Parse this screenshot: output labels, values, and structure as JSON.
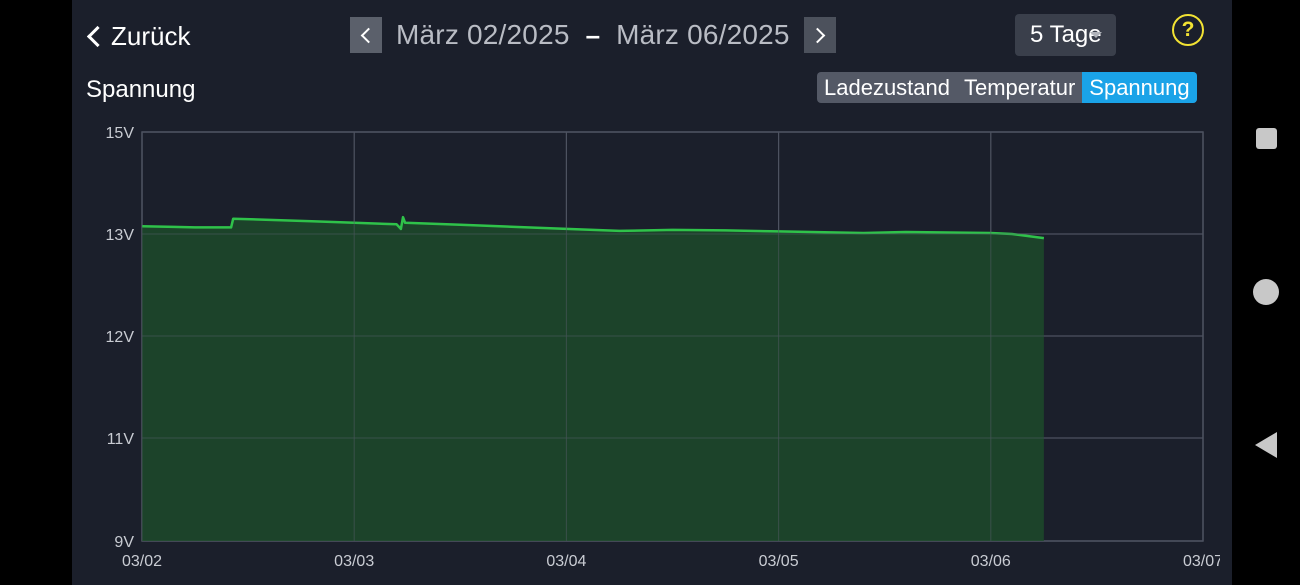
{
  "header": {
    "back_label": "Zurück",
    "date_from": "März 02/2025",
    "date_separator": "–",
    "date_to": "März 06/2025",
    "range_selected": "5 Tage",
    "help_symbol": "?"
  },
  "section": {
    "title": "Spannung"
  },
  "tabs": [
    {
      "label": "Ladezustand",
      "active": false
    },
    {
      "label": "Temperatur",
      "active": false
    },
    {
      "label": "Spannung",
      "active": true
    }
  ],
  "colors": {
    "background": "#1b1f2b",
    "line": "#2fc24a",
    "fill": "#1c4a2a",
    "grid": "#4d5260",
    "active_tab": "#1aa3e8",
    "help": "#f2e233"
  },
  "chart_data": {
    "type": "area",
    "title": "Spannung",
    "xlabel": "",
    "ylabel": "",
    "y_ticks": [
      {
        "value": 15,
        "label": "15V"
      },
      {
        "value": 13,
        "label": "13V"
      },
      {
        "value": 12,
        "label": "12V"
      },
      {
        "value": 11,
        "label": "11V"
      },
      {
        "value": 9,
        "label": "9V"
      }
    ],
    "x_ticks": [
      "03/02",
      "03/03",
      "03/04",
      "03/05",
      "03/06",
      "03/07"
    ],
    "x_range_days": [
      0,
      5
    ],
    "grid": true,
    "series": [
      {
        "x_days": [
          0.0,
          0.15,
          0.25,
          0.26,
          0.4,
          0.42,
          0.43,
          0.8,
          1.0,
          1.2,
          1.22,
          1.23,
          1.24,
          1.5,
          2.0,
          2.25,
          2.5,
          2.75,
          3.0,
          3.4,
          3.6,
          3.8,
          4.0,
          4.1,
          4.25
        ],
        "values": [
          13.15,
          13.14,
          13.13,
          13.13,
          13.13,
          13.13,
          13.3,
          13.25,
          13.22,
          13.19,
          13.1,
          13.33,
          13.22,
          13.18,
          13.1,
          13.06,
          13.08,
          13.07,
          13.05,
          13.02,
          13.04,
          13.03,
          13.02,
          13.0,
          12.96
        ]
      }
    ]
  }
}
